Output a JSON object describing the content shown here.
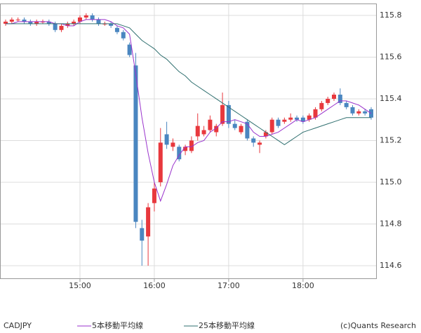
{
  "chart_data": {
    "type": "candlestick",
    "symbol": "CADJPY",
    "credit": "(c)Quants Research",
    "categories": [
      null,
      null,
      null,
      null,
      null,
      null,
      null,
      null,
      null,
      null,
      null,
      null,
      "15:00",
      null,
      null,
      null,
      null,
      null,
      null,
      null,
      null,
      null,
      null,
      null,
      "16:00",
      null,
      null,
      null,
      null,
      null,
      null,
      null,
      null,
      null,
      null,
      null,
      "17:00",
      null,
      null,
      null,
      null,
      null,
      null,
      null,
      null,
      null,
      null,
      null,
      "18:00",
      null,
      null,
      null,
      null,
      null,
      null,
      null,
      null,
      null,
      null,
      null
    ],
    "open": [
      115.76,
      115.77,
      115.78,
      115.78,
      115.77,
      115.76,
      115.77,
      115.77,
      115.76,
      115.73,
      115.75,
      115.76,
      115.77,
      115.79,
      115.8,
      115.78,
      115.76,
      115.76,
      115.74,
      115.72,
      115.66,
      115.56,
      114.78,
      114.74,
      114.9,
      115.0,
      115.23,
      115.17,
      115.17,
      115.15,
      115.15,
      115.22,
      115.23,
      115.25,
      115.24,
      115.28,
      115.37,
      115.28,
      115.24,
      115.29,
      115.21,
      115.18,
      115.22,
      115.24,
      115.3,
      115.29,
      115.3,
      115.31,
      115.31,
      115.3,
      115.31,
      115.35,
      115.38,
      115.4,
      115.42,
      115.38,
      115.36,
      115.33,
      115.34,
      115.35
    ],
    "high": [
      115.78,
      115.79,
      115.79,
      115.79,
      115.78,
      115.78,
      115.78,
      115.78,
      115.77,
      115.76,
      115.77,
      115.78,
      115.8,
      115.81,
      115.81,
      115.79,
      115.77,
      115.77,
      115.75,
      115.73,
      115.67,
      115.62,
      114.82,
      114.9,
      115.0,
      115.26,
      115.29,
      115.21,
      115.18,
      115.18,
      115.22,
      115.33,
      115.27,
      115.32,
      115.28,
      115.43,
      115.39,
      115.3,
      115.28,
      115.3,
      115.22,
      115.2,
      115.25,
      115.31,
      115.31,
      115.31,
      115.33,
      115.32,
      115.32,
      115.33,
      115.36,
      115.39,
      115.41,
      115.43,
      115.45,
      115.39,
      115.37,
      115.35,
      115.35,
      115.36
    ],
    "low": [
      115.75,
      115.76,
      115.77,
      115.76,
      115.75,
      115.75,
      115.76,
      115.75,
      115.72,
      115.72,
      115.74,
      115.75,
      115.76,
      115.78,
      115.77,
      115.75,
      115.75,
      115.74,
      115.71,
      115.68,
      115.6,
      114.78,
      114.6,
      114.6,
      114.86,
      114.98,
      115.16,
      115.15,
      115.1,
      115.13,
      115.14,
      115.2,
      115.22,
      115.24,
      115.22,
      115.27,
      115.26,
      115.25,
      115.23,
      115.2,
      115.17,
      115.14,
      115.21,
      115.23,
      115.26,
      115.28,
      115.29,
      115.29,
      115.28,
      115.29,
      115.3,
      115.34,
      115.37,
      115.39,
      115.37,
      115.35,
      115.32,
      115.32,
      115.32,
      115.3
    ],
    "close": [
      115.77,
      115.78,
      115.78,
      115.77,
      115.76,
      115.77,
      115.77,
      115.76,
      115.73,
      115.75,
      115.76,
      115.77,
      115.79,
      115.8,
      115.78,
      115.76,
      115.76,
      115.75,
      115.72,
      115.69,
      115.61,
      114.81,
      114.72,
      114.88,
      114.97,
      115.19,
      115.18,
      115.19,
      115.11,
      115.17,
      115.2,
      115.27,
      115.25,
      115.3,
      115.27,
      115.37,
      115.28,
      115.26,
      115.27,
      115.21,
      115.19,
      115.19,
      115.24,
      115.3,
      115.27,
      115.3,
      115.31,
      115.3,
      115.29,
      115.32,
      115.35,
      115.38,
      115.4,
      115.42,
      115.38,
      115.36,
      115.33,
      115.34,
      115.33,
      115.31
    ],
    "up_color": "#e8383d",
    "down_color": "#4a86c0",
    "series": [
      {
        "name": "5本移動平均線",
        "color": "#9932cc",
        "values": [
          115.76,
          115.76,
          115.77,
          115.77,
          115.77,
          115.77,
          115.77,
          115.77,
          115.76,
          115.76,
          115.75,
          115.75,
          115.77,
          115.78,
          115.78,
          115.78,
          115.78,
          115.77,
          115.75,
          115.74,
          115.71,
          115.52,
          115.31,
          115.14,
          115.0,
          114.91,
          114.99,
          115.08,
          115.13,
          115.17,
          115.17,
          115.19,
          115.2,
          115.24,
          115.26,
          115.29,
          115.29,
          115.3,
          115.29,
          115.28,
          115.24,
          115.22,
          115.22,
          115.23,
          115.24,
          115.26,
          115.28,
          115.3,
          115.29,
          115.3,
          115.31,
          115.33,
          115.35,
          115.37,
          115.39,
          115.39,
          115.38,
          115.37,
          115.35,
          115.33
        ]
      },
      {
        "name": "25本移動平均線",
        "color": "#2f6f6f",
        "values": [
          115.76,
          115.76,
          115.76,
          115.76,
          115.76,
          115.76,
          115.76,
          115.76,
          115.76,
          115.76,
          115.76,
          115.76,
          115.76,
          115.76,
          115.76,
          115.76,
          115.76,
          115.76,
          115.76,
          115.75,
          115.74,
          115.71,
          115.68,
          115.66,
          115.64,
          115.61,
          115.59,
          115.56,
          115.53,
          115.51,
          115.48,
          115.46,
          115.44,
          115.42,
          115.4,
          115.38,
          115.36,
          115.34,
          115.32,
          115.3,
          115.28,
          115.26,
          115.24,
          115.22,
          115.2,
          115.18,
          115.2,
          115.22,
          115.24,
          115.25,
          115.26,
          115.27,
          115.28,
          115.29,
          115.3,
          115.31,
          115.31,
          115.31,
          115.31,
          115.31
        ]
      }
    ],
    "ylim": [
      114.536,
      115.857
    ],
    "yticks": [
      114.6,
      114.8,
      {
        "value": 115,
        "label": "115.0"
      },
      115.2,
      115.4,
      115.6,
      115.8
    ],
    "grid": true
  }
}
